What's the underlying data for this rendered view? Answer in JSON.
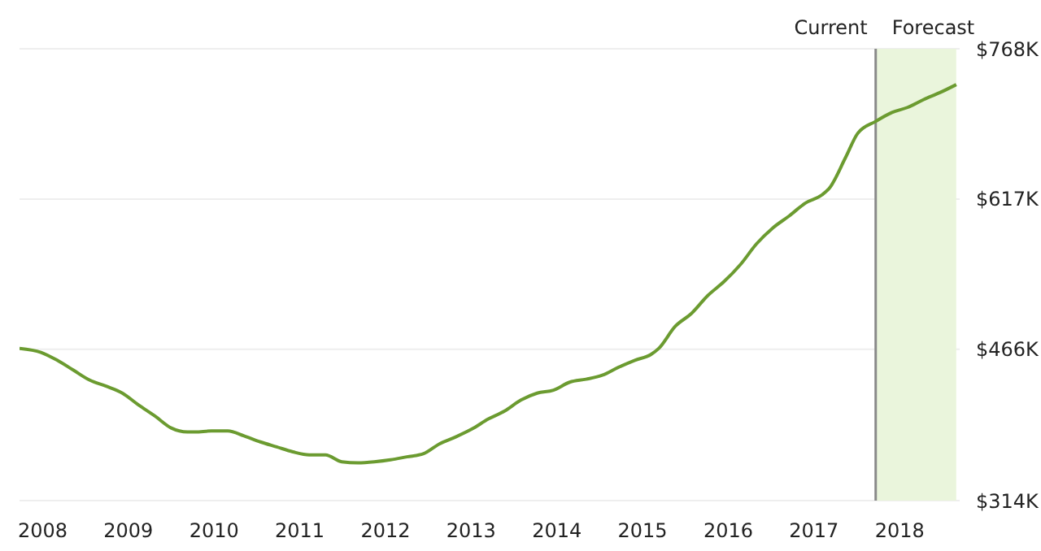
{
  "chart_data": {
    "type": "line",
    "x": [
      2007.73,
      2007.98,
      2008.17,
      2008.36,
      2008.55,
      2008.74,
      2008.93,
      2009.12,
      2009.31,
      2009.5,
      2009.69,
      2009.78,
      2009.97,
      2010.16,
      2010.35,
      2010.54,
      2010.73,
      2010.92,
      2011.11,
      2011.3,
      2011.49,
      2011.68,
      2011.87,
      2012.06,
      2012.25,
      2012.44,
      2012.63,
      2012.82,
      2013.01,
      2013.2,
      2013.39,
      2013.58,
      2013.77,
      2013.96,
      2014.15,
      2014.34,
      2014.53,
      2014.72,
      2014.91,
      2015.1,
      2015.19,
      2015.38,
      2015.57,
      2015.76,
      2015.95,
      2016.14,
      2016.33,
      2016.52,
      2016.71,
      2016.9,
      2017.09,
      2017.18,
      2017.37,
      2017.51,
      2017.72,
      2017.91,
      2018.09,
      2018.28,
      2018.47,
      2018.66
    ],
    "values": [
      467,
      463,
      455,
      445,
      435,
      429,
      422,
      410,
      399,
      387,
      383,
      383,
      384,
      384,
      379,
      373,
      368,
      363,
      360,
      360,
      353,
      352,
      353,
      355,
      358,
      361,
      371,
      378,
      386,
      396,
      404,
      415,
      422,
      425,
      433,
      436,
      440,
      448,
      455,
      461,
      467,
      489,
      502,
      520,
      534,
      551,
      572,
      588,
      600,
      613,
      621,
      628,
      659,
      683,
      695,
      704,
      709,
      717,
      724,
      732
    ],
    "color": "#6b9b30",
    "xlim": [
      2007.73,
      2018.7
    ],
    "xticks": [
      2008,
      2009,
      2010,
      2011,
      2012,
      2013,
      2014,
      2015,
      2016,
      2017,
      2018
    ],
    "ylim": [
      314,
      768
    ],
    "yticks": [
      {
        "value": 314,
        "label": "$314K"
      },
      {
        "value": 466,
        "label": "$466K"
      },
      {
        "value": 617,
        "label": "$617K"
      },
      {
        "value": 768,
        "label": "$768K"
      }
    ],
    "grid": "y",
    "ref_lines": [
      {
        "axis": "x",
        "value": 2017.72,
        "label": "Current",
        "color": "#8a8a8a"
      }
    ],
    "bands": [
      {
        "axis": "x",
        "from": 2017.72,
        "to": 2018.66,
        "label": "Forecast",
        "color": "#eaf5dc"
      }
    ]
  }
}
